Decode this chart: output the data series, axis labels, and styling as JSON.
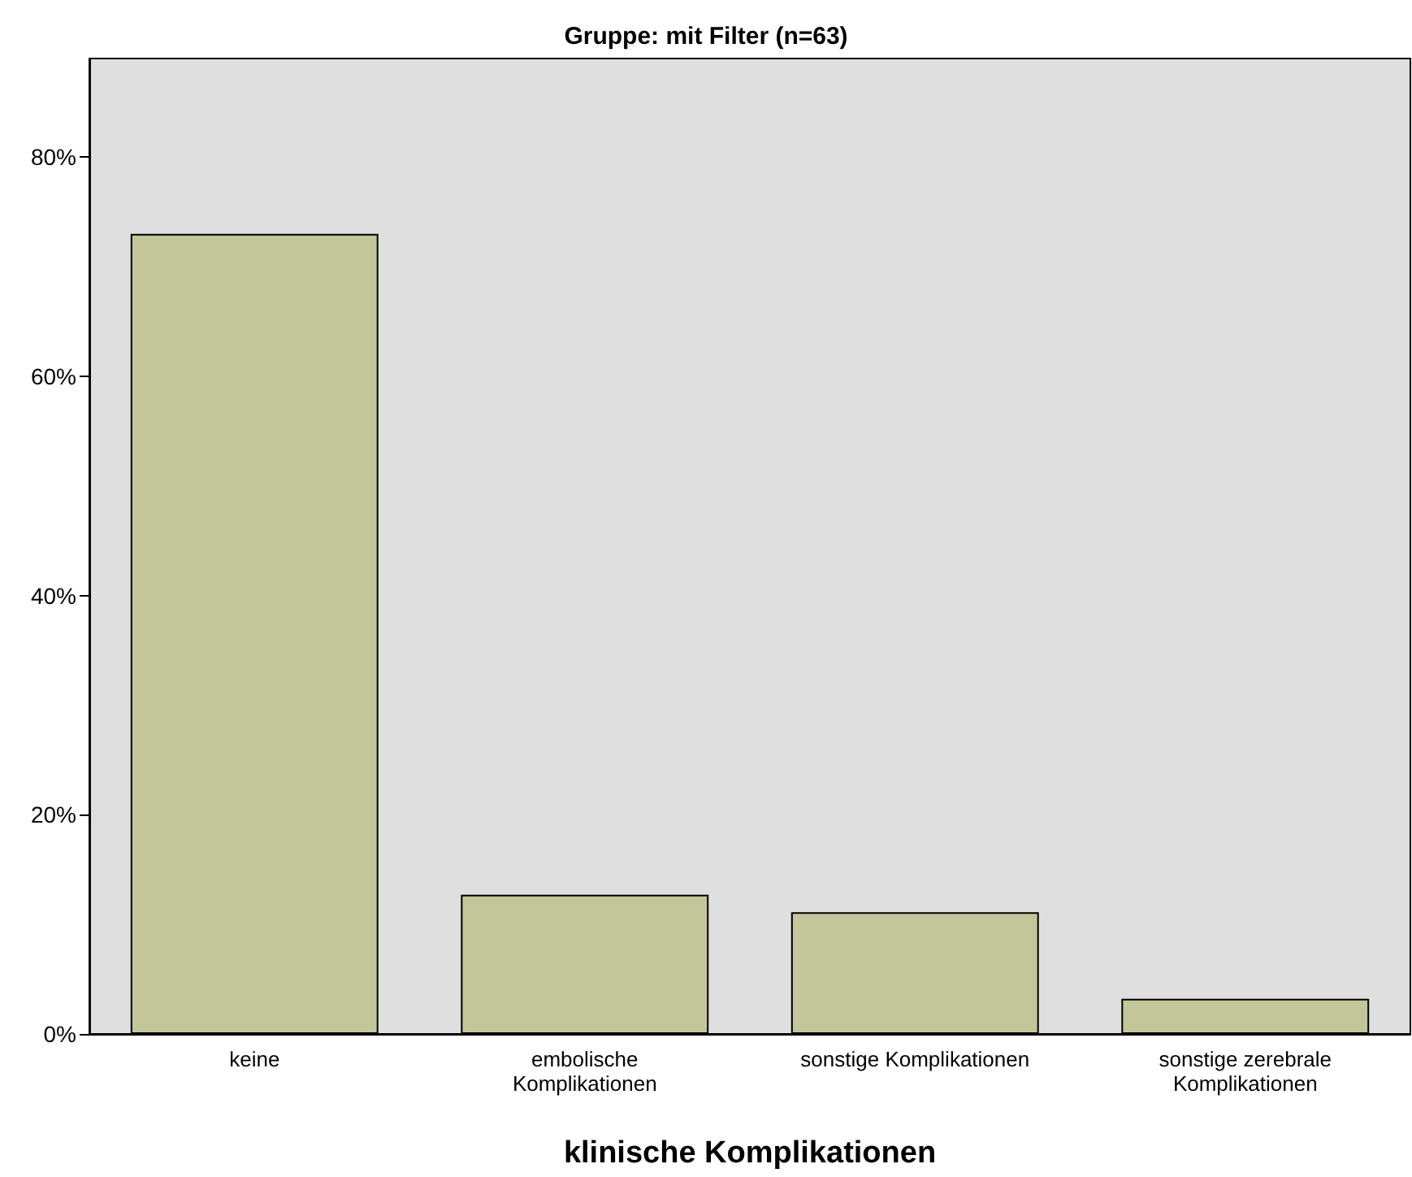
{
  "chart_data": {
    "type": "bar",
    "title": "Gruppe: mit Filter (n=63)",
    "xlabel": "klinische Komplikationen",
    "categories": [
      "keine",
      "embolische\nKomplikationen",
      "sonstige Komplikationen",
      "sonstige zerebrale\nKomplikationen"
    ],
    "values": [
      73.0,
      12.7,
      11.1,
      3.2
    ],
    "color": "#c3c698",
    "ylim": [
      0,
      89
    ],
    "yticks": [
      {
        "value": 0,
        "label": "0%"
      },
      {
        "value": 20,
        "label": "20%"
      },
      {
        "value": 40,
        "label": "40%"
      },
      {
        "value": 60,
        "label": "60%"
      },
      {
        "value": 80,
        "label": "80%"
      }
    ],
    "grid": false
  }
}
